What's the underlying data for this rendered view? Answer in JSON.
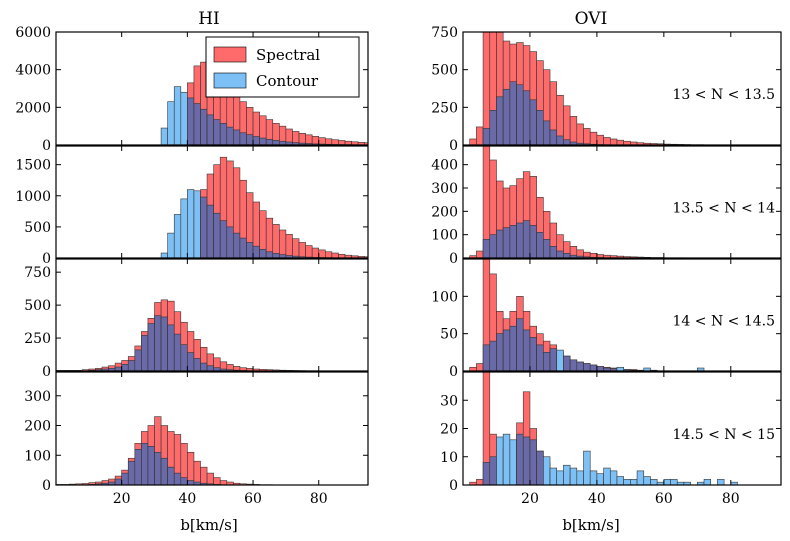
{
  "figure": {
    "column_titles": [
      "HI",
      "OVI"
    ],
    "xlabel": "b[km/s]",
    "legend": [
      {
        "label": "Spectral",
        "color": "#ff6b6b"
      },
      {
        "label": "Contour",
        "color": "#7cc0f5"
      }
    ],
    "overlap_color": "#6a6aa8"
  },
  "chart_data": [
    {
      "type": "bar",
      "title": "HI",
      "row": 0,
      "annotation": "",
      "xlim": [
        0,
        95
      ],
      "ylim": [
        0,
        6000
      ],
      "yticks": [
        0,
        2000,
        4000,
        6000
      ],
      "xticks": [
        20,
        40,
        60,
        80
      ],
      "bin_start": 0,
      "bin_width": 2,
      "series": [
        {
          "name": "Spectral",
          "values": [
            0,
            0,
            0,
            0,
            0,
            0,
            0,
            0,
            0,
            0,
            0,
            0,
            0,
            0,
            0,
            0,
            0,
            0,
            0,
            0,
            3300,
            4200,
            4400,
            4600,
            4200,
            3500,
            3100,
            2650,
            2300,
            2000,
            1750,
            1550,
            1350,
            1150,
            1000,
            850,
            720,
            620,
            540,
            460,
            390,
            330,
            280,
            240,
            200,
            170,
            140,
            120
          ]
        },
        {
          "name": "Contour",
          "values": [
            0,
            0,
            0,
            0,
            0,
            0,
            0,
            0,
            0,
            0,
            0,
            0,
            0,
            0,
            0,
            0,
            900,
            2300,
            3100,
            2800,
            2500,
            2200,
            1900,
            1600,
            1350,
            1150,
            950,
            800,
            650,
            550,
            450,
            370,
            300,
            250,
            200,
            160,
            130,
            100,
            80,
            60,
            50,
            40,
            30,
            25,
            20,
            15,
            10,
            8
          ]
        }
      ]
    },
    {
      "type": "bar",
      "title": "HI",
      "row": 1,
      "annotation": "",
      "xlim": [
        0,
        95
      ],
      "ylim": [
        0,
        1800
      ],
      "yticks": [
        0,
        500,
        1000,
        1500
      ],
      "xticks": [
        20,
        40,
        60,
        80
      ],
      "bin_start": 0,
      "bin_width": 2,
      "series": [
        {
          "name": "Spectral",
          "values": [
            0,
            0,
            0,
            0,
            0,
            0,
            0,
            0,
            0,
            0,
            0,
            0,
            0,
            0,
            0,
            0,
            0,
            0,
            0,
            0,
            150,
            700,
            1100,
            1350,
            1500,
            1620,
            1560,
            1450,
            1250,
            1050,
            900,
            760,
            640,
            540,
            450,
            380,
            310,
            250,
            200,
            160,
            130,
            100,
            80,
            60,
            45,
            35,
            25,
            20
          ]
        },
        {
          "name": "Contour",
          "values": [
            0,
            0,
            0,
            0,
            0,
            0,
            0,
            0,
            0,
            0,
            0,
            0,
            0,
            0,
            0,
            0,
            80,
            400,
            700,
            950,
            1100,
            1080,
            980,
            850,
            720,
            600,
            500,
            400,
            320,
            250,
            190,
            140,
            100,
            75,
            55,
            40,
            30,
            20,
            15,
            10,
            8,
            6,
            4,
            3,
            2,
            1,
            1,
            0
          ]
        }
      ]
    },
    {
      "type": "bar",
      "title": "HI",
      "row": 2,
      "annotation": "",
      "xlim": [
        0,
        95
      ],
      "ylim": [
        0,
        850
      ],
      "yticks": [
        0,
        250,
        500,
        750
      ],
      "xticks": [
        20,
        40,
        60,
        80
      ],
      "bin_start": 0,
      "bin_width": 2,
      "series": [
        {
          "name": "Spectral",
          "values": [
            5,
            5,
            5,
            5,
            10,
            15,
            20,
            30,
            40,
            60,
            80,
            110,
            190,
            300,
            400,
            520,
            540,
            530,
            450,
            370,
            300,
            240,
            180,
            130,
            100,
            70,
            50,
            35,
            25,
            20,
            15,
            12,
            10,
            8,
            6,
            5,
            4,
            3,
            2,
            2,
            1,
            1,
            1,
            0,
            0,
            0,
            0,
            0
          ]
        },
        {
          "name": "Contour",
          "values": [
            0,
            0,
            0,
            0,
            2,
            5,
            10,
            15,
            20,
            30,
            50,
            80,
            160,
            270,
            360,
            420,
            410,
            350,
            280,
            200,
            140,
            95,
            60,
            40,
            25,
            15,
            10,
            6,
            4,
            2,
            1,
            1,
            0,
            0,
            0,
            0,
            0,
            0,
            0,
            0,
            0,
            0,
            0,
            0,
            0,
            0,
            0,
            0
          ]
        }
      ]
    },
    {
      "type": "bar",
      "title": "HI",
      "row": 3,
      "annotation": "",
      "xlim": [
        0,
        95
      ],
      "ylim": [
        0,
        380
      ],
      "yticks": [
        0,
        100,
        200,
        300
      ],
      "xticks": [
        20,
        40,
        60,
        80
      ],
      "bin_start": 0,
      "bin_width": 2,
      "series": [
        {
          "name": "Spectral",
          "values": [
            2,
            2,
            3,
            4,
            5,
            8,
            10,
            15,
            20,
            30,
            50,
            90,
            140,
            180,
            200,
            230,
            200,
            180,
            170,
            140,
            110,
            80,
            60,
            40,
            25,
            15,
            10,
            6,
            4,
            3,
            2,
            1,
            1,
            0,
            0,
            0,
            0,
            0,
            0,
            0,
            0,
            0,
            0,
            0,
            0,
            0,
            0,
            0
          ]
        },
        {
          "name": "Contour",
          "values": [
            0,
            0,
            0,
            0,
            1,
            2,
            4,
            6,
            10,
            20,
            40,
            80,
            120,
            140,
            130,
            110,
            90,
            60,
            40,
            25,
            15,
            10,
            6,
            4,
            2,
            1,
            1,
            0,
            0,
            0,
            0,
            0,
            0,
            0,
            0,
            0,
            0,
            0,
            0,
            0,
            0,
            0,
            0,
            0,
            0,
            0,
            0,
            0
          ]
        }
      ]
    },
    {
      "type": "bar",
      "title": "OVI",
      "row": 0,
      "annotation": "13 < N < 13.5",
      "xlim": [
        0,
        95
      ],
      "ylim": [
        0,
        750
      ],
      "yticks": [
        0,
        250,
        500,
        750
      ],
      "xticks": [
        20,
        40,
        60,
        80
      ],
      "bin_start": 2,
      "bin_width": 2,
      "series": [
        {
          "name": "Spectral",
          "values": [
            40,
            120,
            760,
            760,
            750,
            690,
            670,
            680,
            660,
            620,
            560,
            500,
            420,
            330,
            260,
            190,
            140,
            110,
            85,
            65,
            50,
            40,
            32,
            25,
            20,
            15,
            12,
            10,
            8,
            6,
            5,
            4,
            3,
            2,
            2,
            1,
            1,
            1,
            0,
            0,
            0,
            0,
            0,
            0,
            0,
            0
          ]
        },
        {
          "name": "Contour",
          "values": [
            0,
            0,
            110,
            230,
            320,
            370,
            420,
            400,
            360,
            300,
            230,
            160,
            100,
            60,
            35,
            20,
            12,
            8,
            5,
            3,
            2,
            1,
            1,
            0,
            0,
            0,
            0,
            0,
            0,
            0,
            0,
            0,
            0,
            0,
            0,
            0,
            0,
            0,
            0,
            0,
            0,
            0,
            0,
            0,
            0,
            0
          ]
        }
      ]
    },
    {
      "type": "bar",
      "title": "OVI",
      "row": 1,
      "annotation": "13.5 < N < 14",
      "xlim": [
        0,
        95
      ],
      "ylim": [
        0,
        480
      ],
      "yticks": [
        0,
        100,
        200,
        300,
        400
      ],
      "xticks": [
        20,
        40,
        60,
        80
      ],
      "bin_start": 2,
      "bin_width": 2,
      "series": [
        {
          "name": "Spectral",
          "values": [
            10,
            30,
            480,
            420,
            330,
            300,
            310,
            340,
            370,
            350,
            260,
            200,
            150,
            100,
            70,
            50,
            35,
            25,
            20,
            15,
            12,
            10,
            8,
            6,
            5,
            4,
            3,
            2,
            2,
            1,
            1,
            1,
            0,
            0,
            0,
            0,
            0,
            0,
            0,
            0,
            0,
            0,
            0,
            0,
            0,
            0
          ]
        },
        {
          "name": "Contour",
          "values": [
            0,
            0,
            80,
            100,
            120,
            130,
            140,
            150,
            160,
            140,
            110,
            80,
            50,
            30,
            20,
            12,
            8,
            5,
            3,
            2,
            1,
            1,
            0,
            0,
            0,
            0,
            0,
            0,
            0,
            0,
            0,
            0,
            0,
            0,
            0,
            0,
            0,
            0,
            0,
            0,
            0,
            0,
            0,
            0,
            0,
            0
          ]
        }
      ]
    },
    {
      "type": "bar",
      "title": "OVI",
      "row": 2,
      "annotation": "14 < N < 14.5",
      "xlim": [
        0,
        95
      ],
      "ylim": [
        0,
        150
      ],
      "yticks": [
        0,
        50,
        100
      ],
      "xticks": [
        20,
        40,
        60,
        80
      ],
      "bin_start": 2,
      "bin_width": 2,
      "series": [
        {
          "name": "Spectral",
          "values": [
            5,
            10,
            150,
            130,
            80,
            70,
            80,
            100,
            80,
            60,
            50,
            40,
            35,
            25,
            20,
            15,
            12,
            10,
            8,
            6,
            5,
            4,
            3,
            2,
            2,
            1,
            1,
            1,
            0,
            0,
            0,
            0,
            0,
            0,
            0,
            0,
            0,
            0,
            0,
            0,
            0,
            0,
            0,
            0,
            0,
            0
          ]
        },
        {
          "name": "Contour",
          "values": [
            0,
            0,
            35,
            40,
            50,
            55,
            60,
            70,
            55,
            45,
            35,
            25,
            30,
            28,
            20,
            15,
            12,
            10,
            8,
            6,
            4,
            3,
            5,
            2,
            1,
            1,
            4,
            1,
            0,
            0,
            0,
            0,
            0,
            0,
            4,
            0,
            0,
            0,
            0,
            0,
            0,
            0,
            0,
            0,
            0,
            0
          ]
        }
      ]
    },
    {
      "type": "bar",
      "title": "OVI",
      "row": 3,
      "annotation": "14.5 < N < 15",
      "xlim": [
        0,
        95
      ],
      "ylim": [
        0,
        40
      ],
      "yticks": [
        0,
        10,
        20,
        30
      ],
      "xticks": [
        20,
        40,
        60,
        80
      ],
      "bin_start": 2,
      "bin_width": 2,
      "series": [
        {
          "name": "Spectral",
          "values": [
            1,
            2,
            40,
            18,
            12,
            13,
            15,
            22,
            33,
            20,
            12,
            8,
            5,
            4,
            3,
            3,
            2,
            2,
            1,
            1,
            1,
            1,
            0,
            0,
            0,
            0,
            0,
            0,
            0,
            0,
            0,
            0,
            0,
            0,
            0,
            0,
            0,
            0,
            0,
            0,
            0,
            0,
            0,
            0,
            0,
            0
          ]
        },
        {
          "name": "Contour",
          "values": [
            0,
            0,
            8,
            10,
            17,
            18,
            16,
            18,
            17,
            16,
            12,
            10,
            6,
            5,
            7,
            6,
            5,
            12,
            5,
            4,
            6,
            5,
            3,
            2,
            2,
            5,
            3,
            2,
            1,
            2,
            2,
            1,
            1,
            0,
            1,
            2,
            0,
            2,
            0,
            1,
            0,
            0,
            0,
            0,
            0,
            0
          ]
        }
      ]
    }
  ]
}
